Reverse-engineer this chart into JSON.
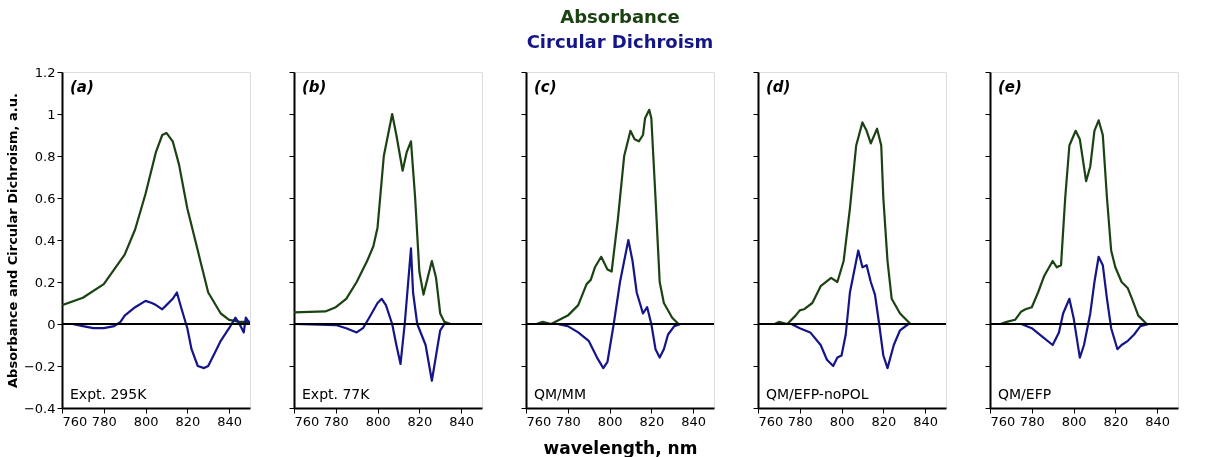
{
  "chart_data": [
    {
      "type": "line",
      "ylabel": "Absorbance and Circular Dichroism, a.u.",
      "xlim": [
        760,
        850
      ],
      "ylim": [
        -0.4,
        1.2
      ],
      "xticks": [
        760,
        780,
        800,
        820,
        840
      ],
      "yticks": [
        -0.4,
        -0.2,
        0,
        0.2,
        0.4,
        0.6,
        0.8,
        1,
        1.2
      ],
      "annotations": [
        "(a)",
        "Expt. 295K"
      ],
      "ref_lines": [
        {
          "axis": "y",
          "value": 0,
          "color": "#000000"
        }
      ],
      "series": [
        {
          "color": "#1b4212",
          "x": [
            760,
            770,
            780,
            790,
            795,
            800,
            805,
            808,
            810,
            813,
            816,
            820,
            826,
            830,
            833,
            836,
            840,
            845,
            850
          ],
          "values": [
            0.09,
            0.125,
            0.19,
            0.33,
            0.45,
            0.62,
            0.82,
            0.9,
            0.91,
            0.87,
            0.76,
            0.55,
            0.31,
            0.15,
            0.1,
            0.05,
            0.02,
            0.01,
            0.01
          ]
        },
        {
          "color": "#15158a",
          "x": [
            760,
            765,
            770,
            775,
            780,
            785,
            788,
            790,
            795,
            800,
            803,
            805,
            808,
            810,
            813,
            815,
            817,
            820,
            822,
            825,
            828,
            830,
            833,
            836,
            840,
            843,
            845,
            847,
            848,
            850
          ],
          "values": [
            0.0,
            0.0,
            -0.01,
            -0.02,
            -0.02,
            -0.01,
            0.01,
            0.04,
            0.08,
            0.11,
            0.1,
            0.09,
            0.07,
            0.09,
            0.12,
            0.15,
            0.08,
            -0.02,
            -0.12,
            -0.2,
            -0.21,
            -0.2,
            -0.14,
            -0.08,
            -0.02,
            0.03,
            0.0,
            -0.04,
            0.03,
            0.0
          ]
        }
      ]
    },
    {
      "type": "line",
      "xlim": [
        760,
        850
      ],
      "ylim": [
        -0.4,
        1.2
      ],
      "xticks": [
        760,
        780,
        800,
        820,
        840
      ],
      "yticks": [
        -0.4,
        -0.2,
        0,
        0.2,
        0.4,
        0.6,
        0.8,
        1,
        1.2
      ],
      "tick_labels": "x",
      "annotations": [
        "(b)",
        "Expt. 77K"
      ],
      "ref_lines": [
        {
          "axis": "y",
          "value": 0,
          "color": "#000000"
        }
      ],
      "series": [
        {
          "color": "#1b4212",
          "x": [
            760,
            775,
            780,
            785,
            790,
            795,
            798,
            800,
            803,
            807,
            809,
            812,
            814,
            816,
            818,
            820,
            822,
            824,
            826,
            828,
            830,
            832,
            835,
            850
          ],
          "values": [
            0.055,
            0.06,
            0.08,
            0.12,
            0.2,
            0.3,
            0.37,
            0.46,
            0.8,
            1.0,
            0.9,
            0.73,
            0.82,
            0.87,
            0.6,
            0.25,
            0.14,
            0.22,
            0.3,
            0.22,
            0.05,
            0.01,
            0.0,
            0.0
          ]
        },
        {
          "color": "#15158a",
          "x": [
            760,
            780,
            785,
            790,
            793,
            796,
            800,
            802,
            804,
            807,
            809,
            811,
            813,
            816,
            817,
            819,
            821,
            823,
            826,
            828,
            830,
            832,
            850
          ],
          "values": [
            0.0,
            -0.005,
            -0.02,
            -0.04,
            -0.02,
            0.03,
            0.1,
            0.12,
            0.09,
            0.0,
            -0.1,
            -0.19,
            0.0,
            0.36,
            0.15,
            0.0,
            -0.05,
            -0.1,
            -0.27,
            -0.15,
            -0.03,
            0.0,
            0.0
          ]
        }
      ]
    },
    {
      "type": "line",
      "xlabel": "wavelength, nm",
      "xlim": [
        760,
        850
      ],
      "ylim": [
        -0.4,
        1.2
      ],
      "xticks": [
        760,
        780,
        800,
        820,
        840
      ],
      "yticks": [
        -0.4,
        -0.2,
        0,
        0.2,
        0.4,
        0.6,
        0.8,
        1,
        1.2
      ],
      "tick_labels": "x",
      "annotations": [
        "(c)",
        "QM/MM"
      ],
      "ref_lines": [
        {
          "axis": "y",
          "value": 0,
          "color": "#000000"
        }
      ],
      "series": [
        {
          "name": "Absorbance",
          "color": "#1b4212",
          "x": [
            765,
            768,
            772,
            776,
            780,
            785,
            789,
            791,
            793,
            796,
            799,
            801,
            804,
            807,
            810,
            812,
            814,
            816,
            817,
            819,
            820,
            822,
            824,
            826,
            830,
            833
          ],
          "values": [
            0.0,
            0.01,
            0.0,
            0.02,
            0.04,
            0.09,
            0.19,
            0.21,
            0.27,
            0.32,
            0.26,
            0.25,
            0.5,
            0.8,
            0.92,
            0.88,
            0.87,
            0.9,
            0.98,
            1.02,
            0.98,
            0.6,
            0.2,
            0.1,
            0.03,
            0.0
          ]
        },
        {
          "name": "Circular Dichroism",
          "color": "#15158a",
          "x": [
            765,
            775,
            780,
            785,
            790,
            794,
            797,
            799,
            802,
            805,
            809,
            811,
            813,
            816,
            818,
            820,
            822,
            824,
            826,
            828,
            831,
            834
          ],
          "values": [
            0.0,
            0.0,
            -0.01,
            -0.04,
            -0.08,
            -0.16,
            -0.21,
            -0.18,
            0.0,
            0.2,
            0.4,
            0.3,
            0.15,
            0.05,
            0.08,
            0.0,
            -0.12,
            -0.16,
            -0.12,
            -0.05,
            -0.01,
            0.0
          ]
        }
      ]
    },
    {
      "type": "line",
      "xlim": [
        760,
        850
      ],
      "ylim": [
        -0.4,
        1.2
      ],
      "xticks": [
        760,
        780,
        800,
        820,
        840
      ],
      "yticks": [
        -0.4,
        -0.2,
        0,
        0.2,
        0.4,
        0.6,
        0.8,
        1,
        1.2
      ],
      "tick_labels": "x",
      "annotations": [
        "(d)",
        "QM/EFP-noPOL"
      ],
      "ref_lines": [
        {
          "axis": "y",
          "value": 0,
          "color": "#000000"
        }
      ],
      "series": [
        {
          "color": "#1b4212",
          "x": [
            768,
            770,
            774,
            778,
            780,
            782,
            786,
            790,
            795,
            798,
            801,
            804,
            807,
            810,
            812,
            814,
            817,
            819,
            820,
            822,
            824,
            828,
            833
          ],
          "values": [
            0.0,
            0.01,
            0.0,
            0.04,
            0.065,
            0.07,
            0.1,
            0.18,
            0.22,
            0.2,
            0.3,
            0.55,
            0.85,
            0.96,
            0.92,
            0.86,
            0.93,
            0.85,
            0.6,
            0.3,
            0.12,
            0.05,
            0.0
          ]
        },
        {
          "color": "#15158a",
          "x": [
            770,
            776,
            780,
            785,
            790,
            793,
            796,
            798,
            800,
            802,
            804,
            808,
            810,
            812,
            814,
            816,
            818,
            820,
            822,
            825,
            828,
            832
          ],
          "values": [
            0.0,
            0.0,
            -0.02,
            -0.04,
            -0.1,
            -0.17,
            -0.2,
            -0.16,
            -0.15,
            -0.05,
            0.15,
            0.35,
            0.27,
            0.28,
            0.2,
            0.14,
            0.0,
            -0.15,
            -0.21,
            -0.1,
            -0.03,
            0.0
          ]
        }
      ]
    },
    {
      "type": "line",
      "xlim": [
        760,
        850
      ],
      "ylim": [
        -0.4,
        1.2
      ],
      "xticks": [
        760,
        780,
        800,
        820,
        840
      ],
      "yticks": [
        -0.4,
        -0.2,
        0,
        0.2,
        0.4,
        0.6,
        0.8,
        1,
        1.2
      ],
      "tick_labels": "x",
      "annotations": [
        "(e)",
        "QM/EFP"
      ],
      "ref_lines": [
        {
          "axis": "y",
          "value": 0,
          "color": "#000000"
        }
      ],
      "series": [
        {
          "color": "#1b4212",
          "x": [
            765,
            768,
            772,
            775,
            777,
            780,
            783,
            786,
            790,
            792,
            794,
            796,
            798,
            801,
            803,
            806,
            808,
            810,
            812,
            814,
            816,
            818,
            820,
            823,
            826,
            828,
            831,
            835
          ],
          "values": [
            0.0,
            0.01,
            0.02,
            0.06,
            0.07,
            0.08,
            0.15,
            0.23,
            0.3,
            0.27,
            0.28,
            0.6,
            0.85,
            0.92,
            0.88,
            0.68,
            0.75,
            0.92,
            0.97,
            0.9,
            0.6,
            0.35,
            0.27,
            0.2,
            0.17,
            0.12,
            0.04,
            0.0
          ]
        },
        {
          "color": "#15158a",
          "x": [
            765,
            775,
            780,
            785,
            790,
            793,
            795,
            798,
            800,
            803,
            805,
            808,
            810,
            812,
            814,
            816,
            818,
            821,
            823,
            826,
            829,
            832,
            836
          ],
          "values": [
            0.0,
            0.0,
            -0.02,
            -0.06,
            -0.1,
            -0.04,
            0.05,
            0.12,
            0.03,
            -0.16,
            -0.1,
            0.05,
            0.2,
            0.32,
            0.28,
            0.12,
            -0.02,
            -0.12,
            -0.1,
            -0.08,
            -0.05,
            -0.01,
            0.0
          ]
        }
      ]
    }
  ]
}
